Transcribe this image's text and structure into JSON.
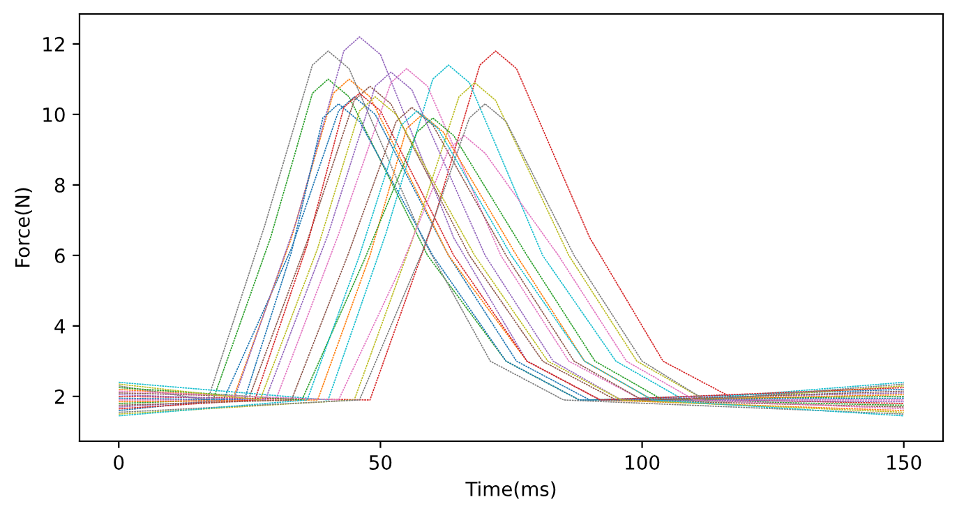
{
  "chart_data": {
    "type": "line",
    "xlabel": "Time(ms)",
    "ylabel": "Force(N)",
    "xlim": [
      -7.5,
      157.5
    ],
    "ylim": [
      0.73,
      12.85
    ],
    "xticks": [
      0,
      50,
      100,
      150
    ],
    "yticks": [
      2,
      4,
      6,
      8,
      10,
      12
    ],
    "grid": false,
    "legend": false,
    "marker": "none",
    "line_style": "dashed",
    "series": [
      {
        "color": "#1f77b4",
        "x": [
          0,
          20,
          33,
          42,
          45,
          49,
          63,
          76,
          90,
          150
        ],
        "values": [
          1.6,
          1.9,
          6.2,
          10.1,
          10.5,
          10.0,
          6.0,
          3.0,
          1.9,
          2.2
        ]
      },
      {
        "color": "#ff7f0e",
        "x": [
          0,
          22,
          33,
          41,
          44,
          48,
          63,
          78,
          92,
          150
        ],
        "values": [
          2.2,
          2.0,
          6.5,
          10.6,
          11.0,
          10.5,
          6.0,
          3.0,
          1.9,
          1.6
        ]
      },
      {
        "color": "#2ca02c",
        "x": [
          0,
          18,
          29,
          37,
          40,
          44,
          59,
          74,
          88,
          150
        ],
        "values": [
          1.8,
          1.9,
          6.5,
          10.6,
          11.0,
          10.5,
          6.0,
          3.0,
          1.9,
          2.0
        ]
      },
      {
        "color": "#d62728",
        "x": [
          0,
          48,
          60,
          69,
          72,
          76,
          90,
          104,
          118,
          150
        ],
        "values": [
          2.0,
          1.9,
          6.9,
          11.4,
          11.8,
          11.3,
          6.5,
          3.0,
          1.9,
          1.8
        ]
      },
      {
        "color": "#9467bd",
        "x": [
          0,
          22,
          34,
          43,
          46,
          50,
          64,
          78,
          92,
          150
        ],
        "values": [
          1.7,
          1.9,
          7.0,
          11.8,
          12.2,
          11.7,
          6.5,
          3.0,
          1.9,
          2.1
        ]
      },
      {
        "color": "#8c564b",
        "x": [
          0,
          25,
          36,
          45,
          48,
          52,
          67,
          81,
          95,
          150
        ],
        "values": [
          2.1,
          2.0,
          6.4,
          10.4,
          10.8,
          10.3,
          6.0,
          3.0,
          1.9,
          1.7
        ]
      },
      {
        "color": "#e377c2",
        "x": [
          0,
          30,
          42,
          52,
          55,
          59,
          73,
          86,
          100,
          150
        ],
        "values": [
          1.9,
          1.9,
          6.6,
          10.9,
          11.3,
          10.8,
          6.0,
          3.0,
          1.9,
          1.9
        ]
      },
      {
        "color": "#7f7f7f",
        "x": [
          0,
          17,
          28,
          37,
          40,
          44,
          58,
          71,
          85,
          150
        ],
        "values": [
          2.3,
          1.9,
          6.9,
          11.4,
          11.8,
          11.3,
          6.5,
          3.0,
          1.9,
          1.5
        ]
      },
      {
        "color": "#bcbd22",
        "x": [
          0,
          45,
          56,
          65,
          68,
          72,
          86,
          99,
          112,
          150
        ],
        "values": [
          1.5,
          1.9,
          6.4,
          10.5,
          10.9,
          10.4,
          6.0,
          3.0,
          1.9,
          2.3
        ]
      },
      {
        "color": "#17becf",
        "x": [
          0,
          40,
          51,
          60,
          63,
          67,
          81,
          95,
          108,
          150
        ],
        "values": [
          2.4,
          1.9,
          6.6,
          11.0,
          11.4,
          10.9,
          6.0,
          3.0,
          1.9,
          2.4
        ]
      },
      {
        "color": "#1f77b4",
        "x": [
          0,
          24,
          33,
          39,
          42,
          46,
          60,
          74,
          88,
          150
        ],
        "values": [
          1.95,
          1.9,
          6.1,
          9.9,
          10.3,
          9.8,
          6.0,
          3.0,
          1.9,
          1.95
        ]
      },
      {
        "color": "#ff7f0e",
        "x": [
          0,
          38,
          48,
          55,
          58,
          62,
          76,
          89,
          102,
          150
        ],
        "values": [
          1.85,
          1.9,
          6.0,
          9.6,
          10.0,
          9.5,
          6.0,
          3.0,
          1.9,
          2.05
        ]
      },
      {
        "color": "#2ca02c",
        "x": [
          0,
          35,
          47,
          57,
          60,
          64,
          78,
          91,
          104,
          150
        ],
        "values": [
          2.25,
          1.9,
          5.9,
          9.5,
          9.9,
          9.4,
          6.0,
          3.0,
          1.9,
          1.75
        ]
      },
      {
        "color": "#d62728",
        "x": [
          0,
          26,
          36,
          43,
          46,
          50,
          64,
          78,
          92,
          150
        ],
        "values": [
          1.65,
          1.9,
          6.3,
          10.2,
          10.6,
          10.1,
          6.0,
          3.0,
          1.9,
          2.25
        ]
      },
      {
        "color": "#9467bd",
        "x": [
          0,
          28,
          40,
          49,
          52,
          56,
          70,
          83,
          96,
          150
        ],
        "values": [
          2.05,
          1.9,
          6.6,
          10.8,
          11.2,
          10.7,
          6.0,
          3.0,
          1.9,
          1.85
        ]
      },
      {
        "color": "#8c564b",
        "x": [
          0,
          33,
          44,
          53,
          56,
          60,
          74,
          87,
          100,
          150
        ],
        "values": [
          1.75,
          1.9,
          6.1,
          9.8,
          10.2,
          9.7,
          6.0,
          3.0,
          1.9,
          2.15
        ]
      },
      {
        "color": "#e377c2",
        "x": [
          0,
          42,
          54,
          63,
          66,
          70,
          84,
          97,
          110,
          150
        ],
        "values": [
          2.15,
          1.9,
          5.7,
          9.0,
          9.4,
          8.9,
          6.0,
          3.0,
          1.9,
          1.65
        ]
      },
      {
        "color": "#7f7f7f",
        "x": [
          0,
          46,
          58,
          67,
          70,
          74,
          87,
          100,
          112,
          150
        ],
        "values": [
          1.55,
          1.9,
          6.1,
          9.9,
          10.3,
          9.8,
          6.0,
          3.0,
          1.9,
          2.35
        ]
      },
      {
        "color": "#bcbd22",
        "x": [
          0,
          27,
          38,
          46,
          49,
          53,
          68,
          82,
          96,
          150
        ],
        "values": [
          2.35,
          1.9,
          6.2,
          10.1,
          10.5,
          10.0,
          6.0,
          3.0,
          1.9,
          1.55
        ]
      },
      {
        "color": "#17becf",
        "x": [
          0,
          36,
          46,
          54,
          57,
          61,
          75,
          89,
          102,
          150
        ],
        "values": [
          1.45,
          1.9,
          6.0,
          9.7,
          10.1,
          9.6,
          6.0,
          3.0,
          1.9,
          1.45
        ]
      }
    ]
  }
}
